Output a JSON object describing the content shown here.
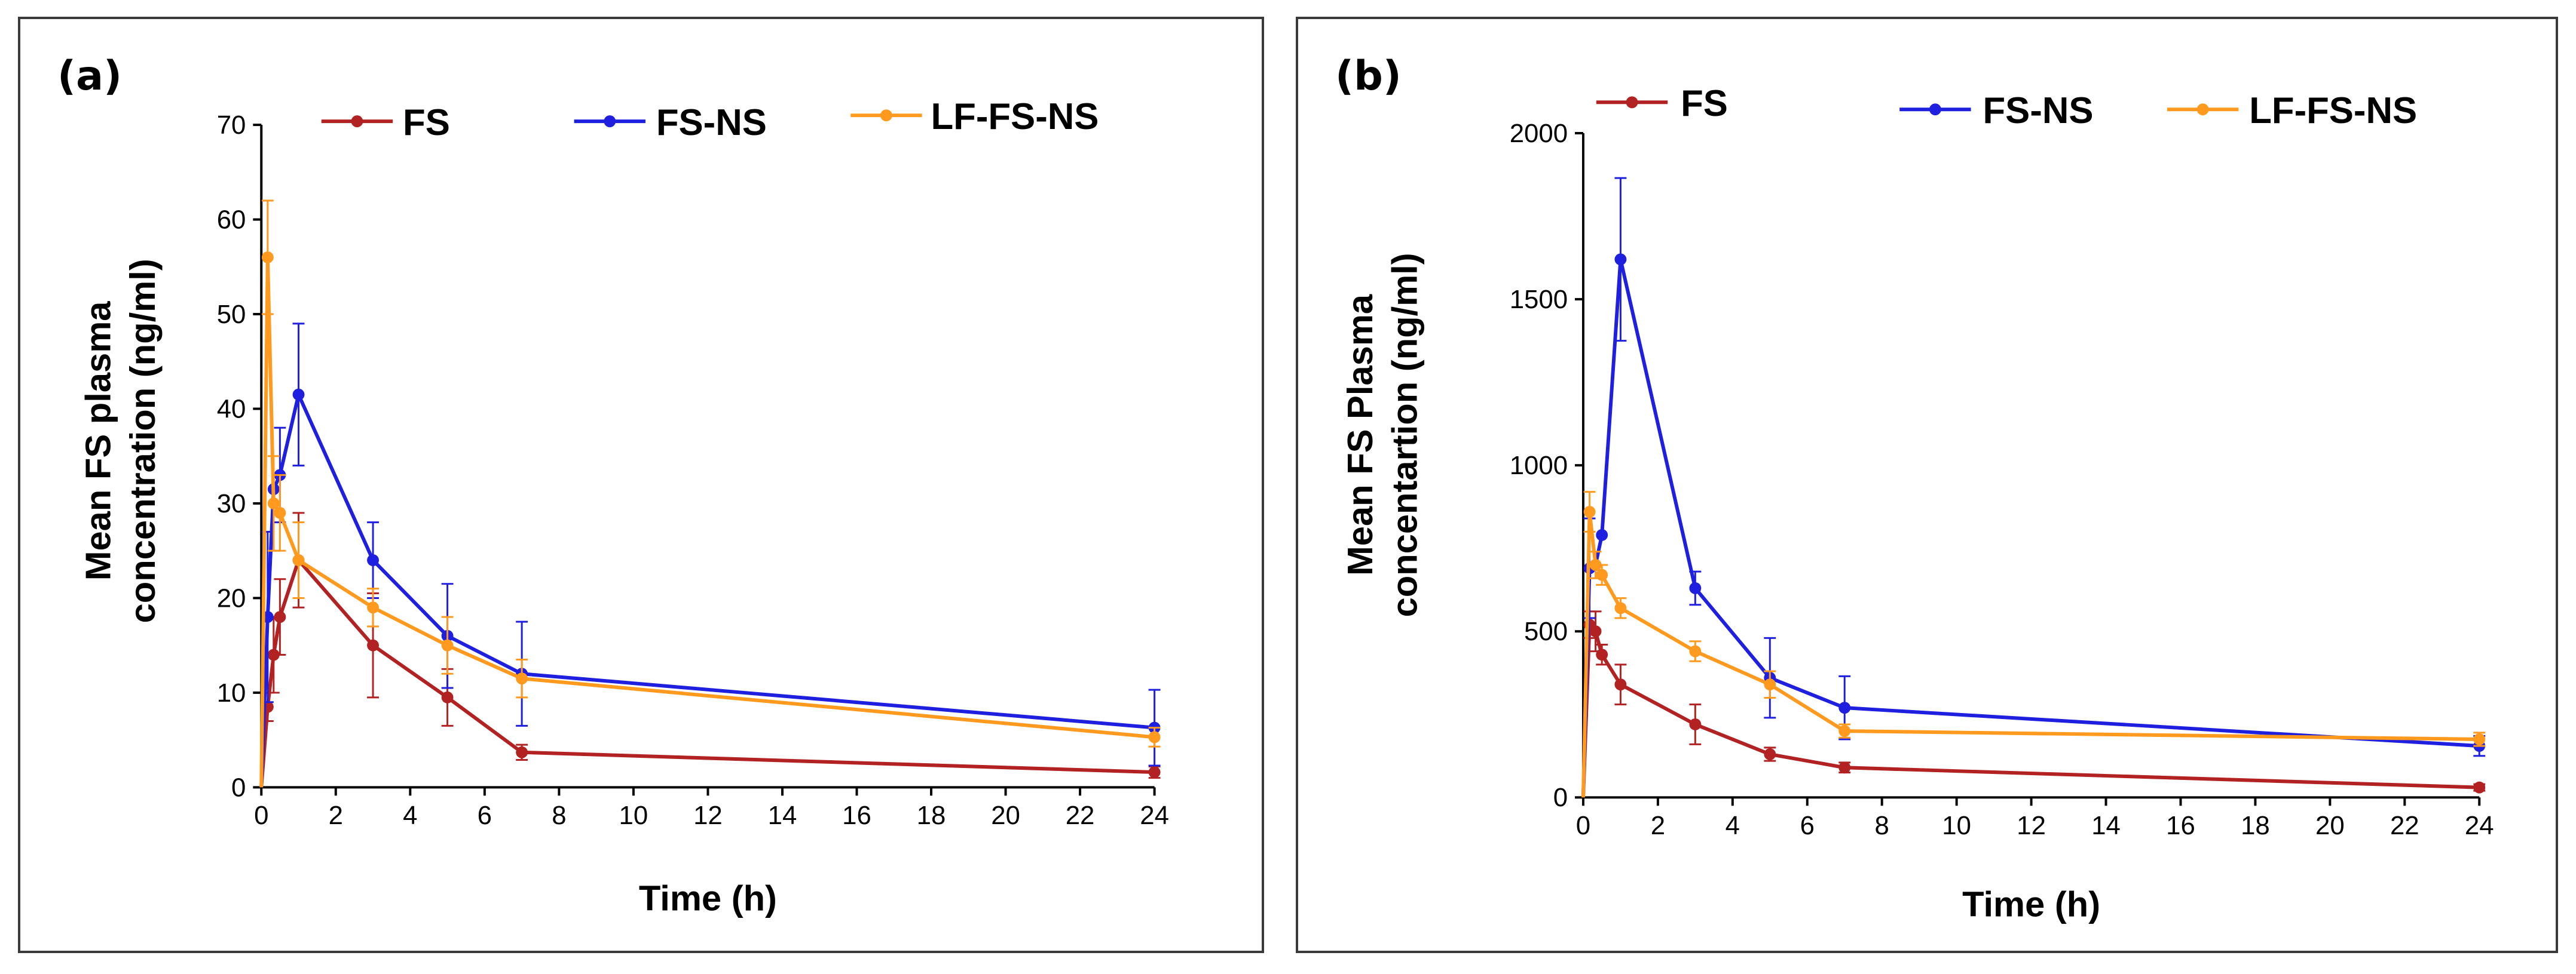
{
  "chart_data": [
    {
      "type": "line",
      "panel_label": "(a)",
      "title": "",
      "xlabel": "Time (h)",
      "ylabel_lines": [
        "Mean FS plasma",
        "concentration (ng/ml)"
      ],
      "xlim": [
        0,
        24
      ],
      "ylim": [
        0,
        70
      ],
      "xticks": [
        0,
        2,
        4,
        6,
        8,
        10,
        12,
        14,
        16,
        18,
        20,
        22,
        24
      ],
      "yticks": [
        0,
        10,
        20,
        30,
        40,
        50,
        60,
        70
      ],
      "grid": false,
      "legend_placement": "top",
      "x": [
        0,
        0.17,
        0.33,
        0.5,
        1,
        3,
        5,
        7,
        24
      ],
      "series": [
        {
          "name": "FS",
          "color": "#b22222",
          "values": [
            0,
            8.5,
            14,
            18,
            24,
            15,
            9.5,
            3.7,
            1.6
          ],
          "errors": [
            0,
            1.5,
            4,
            4,
            5,
            5.5,
            3,
            0.8,
            0.6
          ]
        },
        {
          "name": "FS-NS",
          "color": "#1f1fe0",
          "values": [
            0,
            18,
            31.5,
            33,
            41.5,
            24,
            16,
            12,
            6.3
          ],
          "errors": [
            0,
            9,
            0,
            5,
            7.5,
            4,
            5.5,
            5.5,
            4
          ]
        },
        {
          "name": "LF-FS-NS",
          "color": "#ff9a1f",
          "values": [
            0,
            56,
            30,
            29,
            24,
            19,
            15,
            11.5,
            5.3
          ],
          "errors": [
            0,
            6,
            5,
            4,
            4,
            2,
            3,
            2,
            1
          ]
        }
      ]
    },
    {
      "type": "line",
      "panel_label": "(b)",
      "title": "",
      "xlabel": "Time (h)",
      "ylabel_lines": [
        "Mean FS Plasma",
        "concentartion (ng/ml)"
      ],
      "xlim": [
        0,
        24
      ],
      "ylim": [
        0,
        2000
      ],
      "xticks": [
        0,
        2,
        4,
        6,
        8,
        10,
        12,
        14,
        16,
        18,
        20,
        22,
        24
      ],
      "yticks": [
        0,
        500,
        1000,
        1500,
        2000
      ],
      "grid": false,
      "legend_placement": "top",
      "x": [
        0,
        0.17,
        0.33,
        0.5,
        1,
        3,
        5,
        7,
        24
      ],
      "series": [
        {
          "name": "FS",
          "color": "#b22222",
          "values": [
            0,
            520,
            500,
            430,
            340,
            220,
            130,
            90,
            30
          ],
          "errors": [
            0,
            40,
            60,
            30,
            60,
            60,
            20,
            15,
            10
          ]
        },
        {
          "name": "FS-NS",
          "color": "#1f1fe0",
          "values": [
            0,
            690,
            700,
            790,
            1620,
            630,
            360,
            270,
            155
          ],
          "errors": [
            0,
            150,
            0,
            0,
            245,
            50,
            120,
            95,
            30
          ]
        },
        {
          "name": "LF-FS-NS",
          "color": "#ff9a1f",
          "values": [
            0,
            860,
            700,
            670,
            570,
            440,
            340,
            200,
            175
          ],
          "errors": [
            0,
            60,
            40,
            30,
            30,
            30,
            40,
            20,
            20
          ]
        }
      ]
    }
  ]
}
